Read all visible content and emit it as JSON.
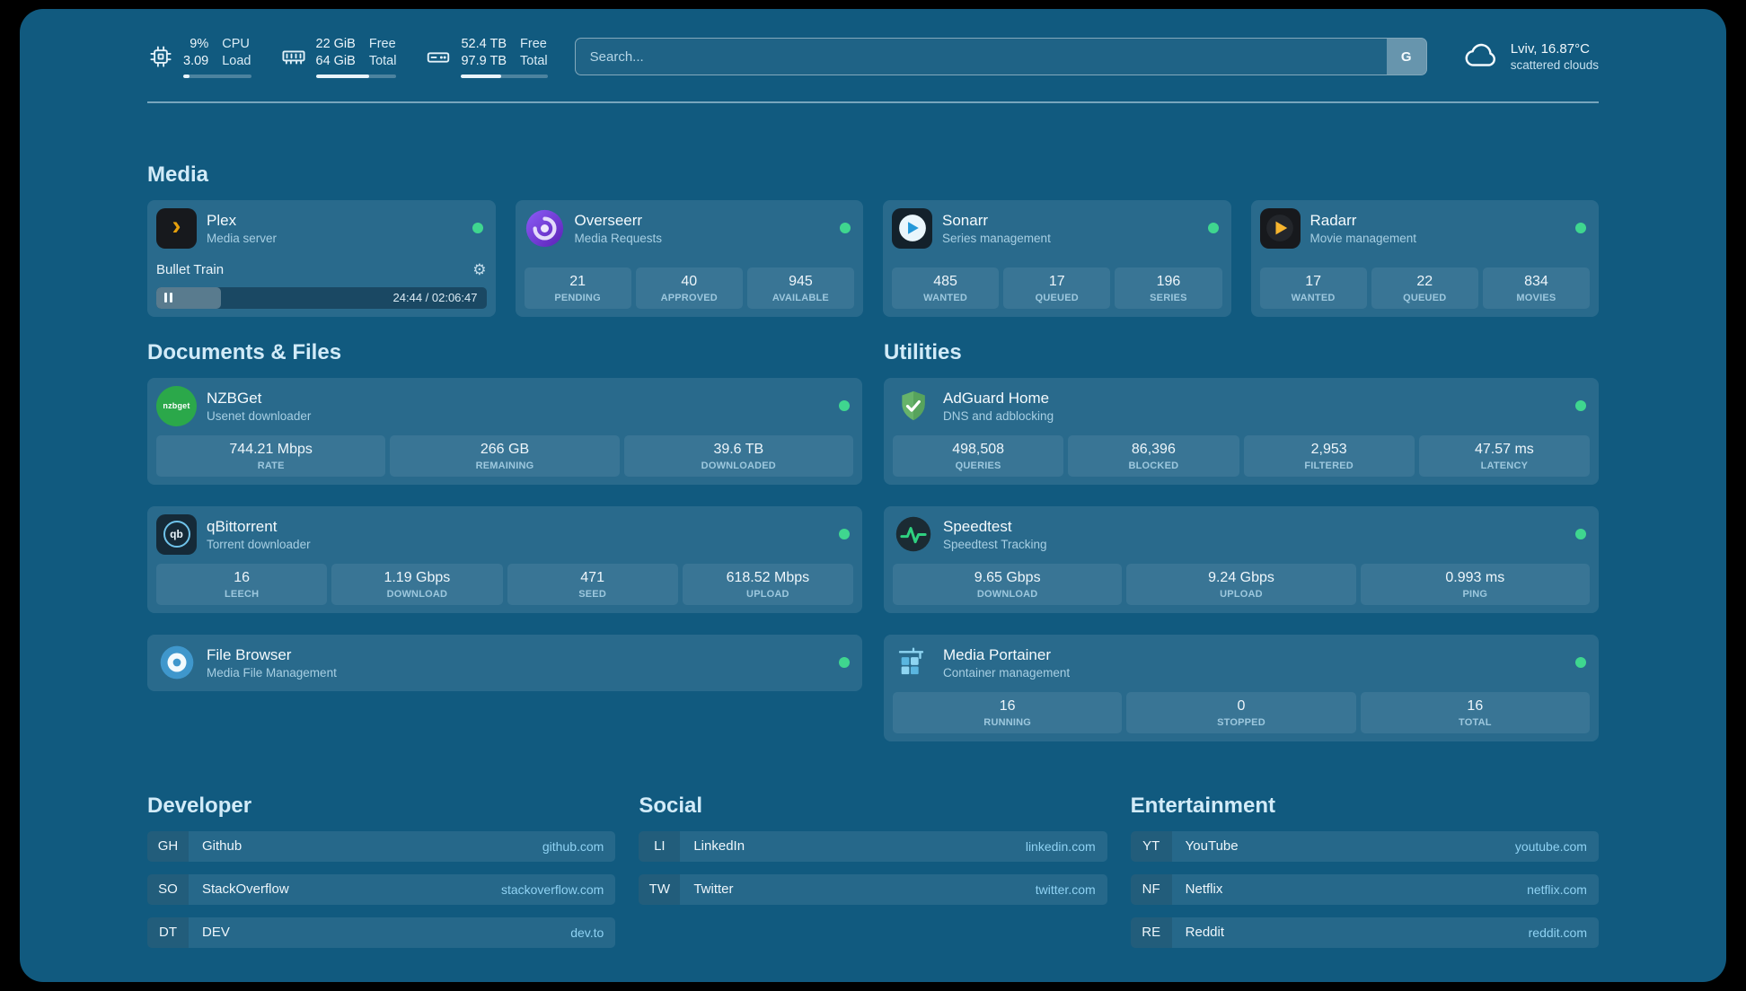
{
  "colors": {
    "page_background": "#115a7f",
    "status_online": "#3fd68f",
    "accent_link": "#8fd2f3",
    "plex_gold": "#e5a00d"
  },
  "icons": {
    "plex_glyph": "›",
    "gear_glyph": "⚙"
  },
  "header": {
    "resources": [
      {
        "icon": "cpu-icon",
        "value_top": "9%",
        "value_bottom": "3.09",
        "label_top": "CPU",
        "label_bottom": "Load",
        "progress_pct": 9
      },
      {
        "icon": "memory-icon",
        "value_top": "22 GiB",
        "value_bottom": "64 GiB",
        "label_top": "Free",
        "label_bottom": "Total",
        "progress_pct": 66
      },
      {
        "icon": "disk-icon",
        "value_top": "52.4 TB",
        "value_bottom": "97.9 TB",
        "label_top": "Free",
        "label_bottom": "Total",
        "progress_pct": 46
      }
    ],
    "search": {
      "placeholder": "Search...",
      "provider_button": "G"
    },
    "weather": {
      "icon": "cloud-icon",
      "location": "Lviv, 16.87°C",
      "condition": "scattered clouds"
    }
  },
  "groups": {
    "media": {
      "title": "Media",
      "plex": {
        "name": "Plex",
        "subtitle": "Media server",
        "status": "online",
        "now_playing": "Bullet Train",
        "time": "24:44 / 02:06:47",
        "progress_pct": 19.5
      },
      "overseerr": {
        "name": "Overseerr",
        "subtitle": "Media Requests",
        "status": "online",
        "stats": [
          {
            "value": "21",
            "label": "PENDING"
          },
          {
            "value": "40",
            "label": "APPROVED"
          },
          {
            "value": "945",
            "label": "AVAILABLE"
          }
        ]
      },
      "sonarr": {
        "name": "Sonarr",
        "subtitle": "Series management",
        "status": "online",
        "stats": [
          {
            "value": "485",
            "label": "WANTED"
          },
          {
            "value": "17",
            "label": "QUEUED"
          },
          {
            "value": "196",
            "label": "SERIES"
          }
        ]
      },
      "radarr": {
        "name": "Radarr",
        "subtitle": "Movie management",
        "status": "online",
        "stats": [
          {
            "value": "17",
            "label": "WANTED"
          },
          {
            "value": "22",
            "label": "QUEUED"
          },
          {
            "value": "834",
            "label": "MOVIES"
          }
        ]
      }
    },
    "documents": {
      "title": "Documents & Files",
      "nzbget": {
        "name": "NZBGet",
        "subtitle": "Usenet downloader",
        "status": "online",
        "icon_text": "nzbget",
        "stats": [
          {
            "value": "744.21 Mbps",
            "label": "RATE"
          },
          {
            "value": "266 GB",
            "label": "REMAINING"
          },
          {
            "value": "39.6 TB",
            "label": "DOWNLOADED"
          }
        ]
      },
      "qbittorrent": {
        "name": "qBittorrent",
        "subtitle": "Torrent downloader",
        "status": "online",
        "icon_text": "qb",
        "stats": [
          {
            "value": "16",
            "label": "LEECH"
          },
          {
            "value": "1.19 Gbps",
            "label": "DOWNLOAD"
          },
          {
            "value": "471",
            "label": "SEED"
          },
          {
            "value": "618.52 Mbps",
            "label": "UPLOAD"
          }
        ]
      },
      "filebrowser": {
        "name": "File Browser",
        "subtitle": "Media File Management",
        "status": "online"
      }
    },
    "utilities": {
      "title": "Utilities",
      "adguard": {
        "name": "AdGuard Home",
        "subtitle": "DNS and adblocking",
        "status": "online",
        "stats": [
          {
            "value": "498,508",
            "label": "QUERIES"
          },
          {
            "value": "86,396",
            "label": "BLOCKED"
          },
          {
            "value": "2,953",
            "label": "FILTERED"
          },
          {
            "value": "47.57 ms",
            "label": "LATENCY"
          }
        ]
      },
      "speedtest": {
        "name": "Speedtest",
        "subtitle": "Speedtest Tracking",
        "status": "online",
        "stats": [
          {
            "value": "9.65 Gbps",
            "label": "DOWNLOAD"
          },
          {
            "value": "9.24 Gbps",
            "label": "UPLOAD"
          },
          {
            "value": "0.993 ms",
            "label": "PING"
          }
        ]
      },
      "portainer": {
        "name": "Media Portainer",
        "subtitle": "Container management",
        "status": "online",
        "stats": [
          {
            "value": "16",
            "label": "RUNNING"
          },
          {
            "value": "0",
            "label": "STOPPED"
          },
          {
            "value": "16",
            "label": "TOTAL"
          }
        ]
      }
    }
  },
  "bookmarks": [
    {
      "title": "Developer",
      "items": [
        {
          "abbr": "GH",
          "name": "Github",
          "domain": "github.com"
        },
        {
          "abbr": "SO",
          "name": "StackOverflow",
          "domain": "stackoverflow.com"
        },
        {
          "abbr": "DT",
          "name": "DEV",
          "domain": "dev.to"
        }
      ]
    },
    {
      "title": "Social",
      "items": [
        {
          "abbr": "LI",
          "name": "LinkedIn",
          "domain": "linkedin.com"
        },
        {
          "abbr": "TW",
          "name": "Twitter",
          "domain": "twitter.com"
        }
      ]
    },
    {
      "title": "Entertainment",
      "items": [
        {
          "abbr": "YT",
          "name": "YouTube",
          "domain": "youtube.com"
        },
        {
          "abbr": "NF",
          "name": "Netflix",
          "domain": "netflix.com"
        },
        {
          "abbr": "RE",
          "name": "Reddit",
          "domain": "reddit.com"
        }
      ]
    }
  ]
}
